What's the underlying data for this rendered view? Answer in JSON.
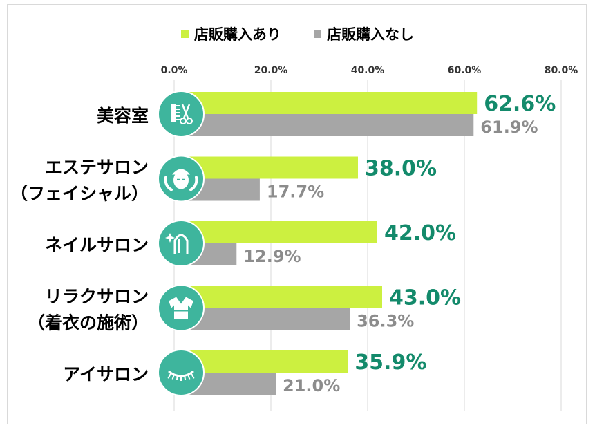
{
  "chart_data": {
    "type": "bar",
    "orientation": "horizontal",
    "categories": [
      [
        "美容室"
      ],
      [
        "エステサロン",
        "（フェイシャル）"
      ],
      [
        "ネイルサロン"
      ],
      [
        "リラクサロン",
        "（着衣の施術）"
      ],
      [
        "アイサロン"
      ]
    ],
    "category_icons": [
      "scissors-comb-icon",
      "face-care-icon",
      "nail-polish-icon",
      "robe-icon",
      "eyelash-icon"
    ],
    "series": [
      {
        "name": "店販購入あり",
        "values": [
          62.6,
          38.0,
          42.0,
          43.0,
          35.9
        ],
        "color": "#ccf040",
        "label_color": "#138a6b"
      },
      {
        "name": "店販購入なし",
        "values": [
          61.9,
          17.7,
          12.9,
          36.3,
          21.0
        ],
        "color": "#a6a6a6",
        "label_color": "#8c8c8c"
      }
    ],
    "xlim": [
      0,
      80
    ],
    "xticks": [
      "0.0%",
      "20.0%",
      "40.0%",
      "60.0%",
      "80.0%"
    ],
    "value_format": "0.0%",
    "grid": true,
    "legend_position": "top",
    "icon_color": "#3eb59d"
  }
}
